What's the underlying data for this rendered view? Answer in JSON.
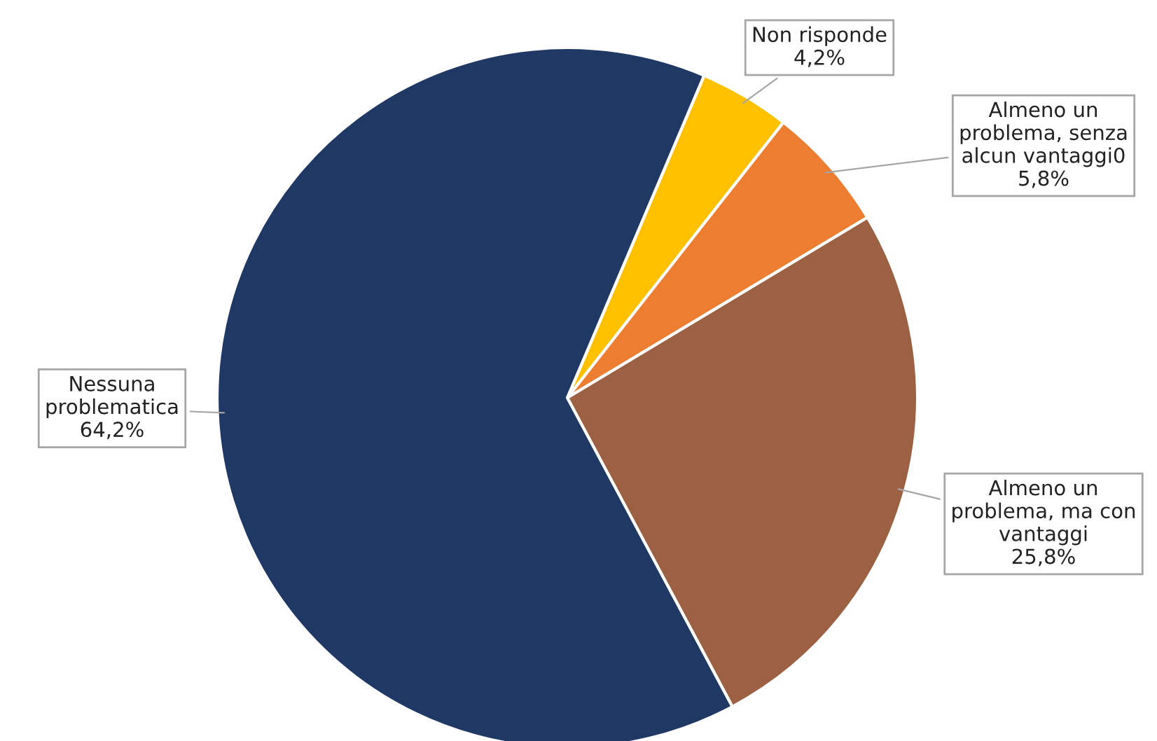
{
  "chart_data": {
    "type": "pie",
    "categories": [
      "Non risponde",
      "Almeno un problema, senza alcun vantaggi0",
      "Almeno un problema, ma con vantaggi",
      "Nessuna problematica"
    ],
    "values": [
      4.2,
      5.8,
      25.8,
      64.2
    ],
    "value_labels": [
      "4,2%",
      "5,8%",
      "25,8%",
      "64,2%"
    ],
    "colors": [
      "#ffc000",
      "#ed7d31",
      "#9c6043",
      "#203864"
    ]
  }
}
